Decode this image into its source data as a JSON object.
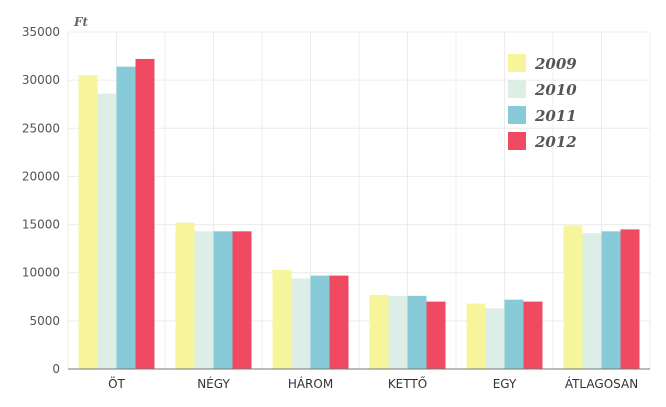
{
  "chart_data": {
    "type": "bar",
    "unit": "Ft",
    "categories": [
      "ÖT",
      "NÉGY",
      "HÁROM",
      "KETTŐ",
      "EGY",
      "ÁTLAGOSAN"
    ],
    "series": [
      {
        "name": "2009",
        "color": "#f7f59c",
        "values": [
          30500,
          15200,
          10300,
          7700,
          6800,
          14900
        ]
      },
      {
        "name": "2010",
        "color": "#ddeee6",
        "values": [
          28600,
          14300,
          9400,
          7600,
          6300,
          14100
        ]
      },
      {
        "name": "2011",
        "color": "#87cbd8",
        "values": [
          31400,
          14300,
          9700,
          7600,
          7200,
          14300
        ]
      },
      {
        "name": "2012",
        "color": "#ef4a62",
        "values": [
          32200,
          14300,
          9700,
          7000,
          7000,
          14500
        ]
      }
    ],
    "ylim": [
      0,
      35000
    ],
    "yticks": [
      0,
      5000,
      10000,
      15000,
      20000,
      25000,
      30000,
      35000
    ],
    "grid": true,
    "legend_position": "top-right"
  }
}
